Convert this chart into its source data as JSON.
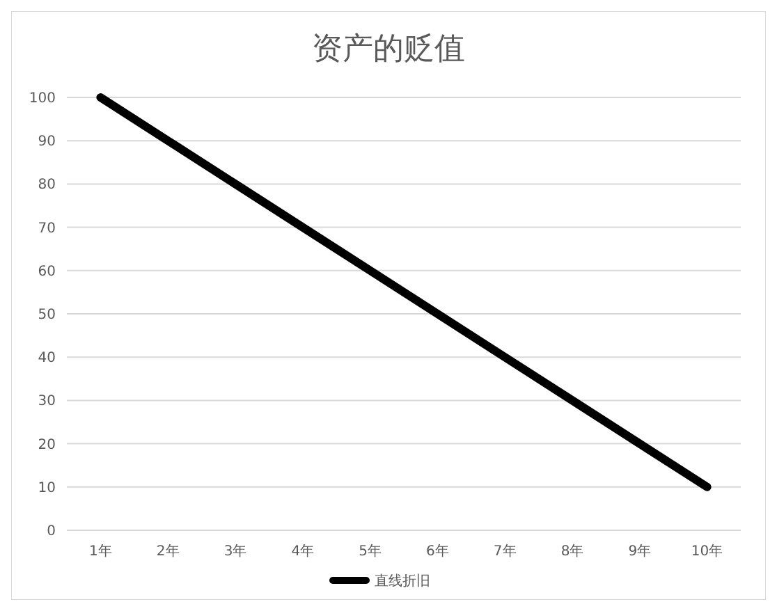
{
  "chart_data": {
    "type": "line",
    "title": "资产的贬值",
    "categories": [
      "1年",
      "2年",
      "3年",
      "4年",
      "5年",
      "6年",
      "7年",
      "8年",
      "9年",
      "10年"
    ],
    "series": [
      {
        "name": "直线折旧",
        "color": "#000000",
        "values": [
          100,
          90,
          80,
          70,
          60,
          50,
          40,
          30,
          20,
          10
        ]
      }
    ],
    "ylim": [
      0,
      100
    ],
    "yticks": [
      0,
      10,
      20,
      30,
      40,
      50,
      60,
      70,
      80,
      90,
      100
    ],
    "grid": "y",
    "legend": "bottom",
    "marker": "none",
    "line_style": "solid"
  }
}
